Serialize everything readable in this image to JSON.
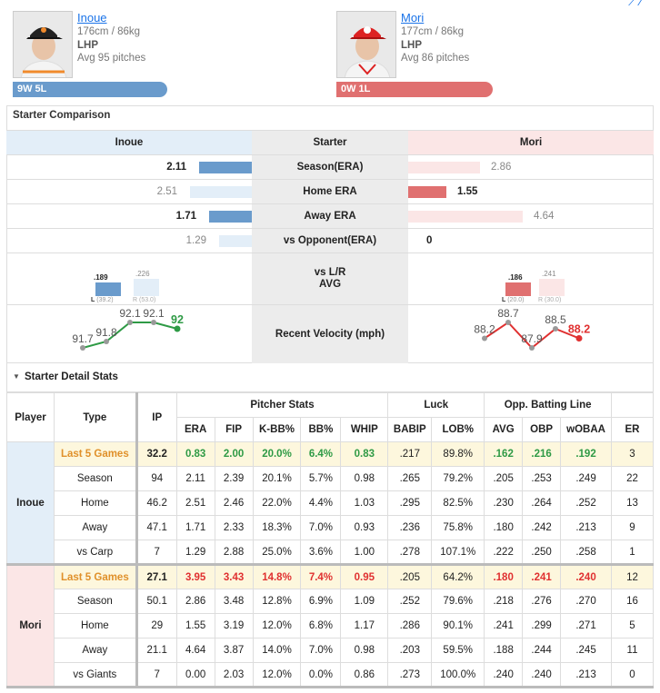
{
  "header": {
    "left": {
      "name": "Inoue",
      "height_weight": "176cm / 86kg",
      "hand": "LHP",
      "avg_pitches": "Avg 95 pitches",
      "record": "9W 5L",
      "color": "#6a9bcc"
    },
    "right": {
      "name": "Mori",
      "height_weight": "177cm / 86kg",
      "hand": "LHP",
      "avg_pitches": "Avg 86 pitches",
      "record": "0W 1L",
      "color": "#e07070"
    }
  },
  "comparison": {
    "title": "Starter Comparison",
    "head": {
      "left": "Inoue",
      "mid": "Starter",
      "right": "Mori"
    },
    "rows": [
      {
        "label": "Season(ERA)",
        "left": "2.11",
        "right": "2.86",
        "left_bold": true,
        "right_bold": false,
        "left_frac": 0.55,
        "right_frac": 0.75
      },
      {
        "label": "Home ERA",
        "left": "2.51",
        "right": "1.55",
        "left_bold": false,
        "right_bold": true,
        "left_frac": 0.65,
        "right_frac": 0.4
      },
      {
        "label": "Away ERA",
        "left": "1.71",
        "right": "4.64",
        "left_bold": true,
        "right_bold": false,
        "left_frac": 0.45,
        "right_frac": 1.2
      },
      {
        "label": "vs Opponent(ERA)",
        "left": "1.29",
        "right": "0",
        "left_bold": false,
        "right_bold": true,
        "left_frac": 0.34,
        "right_frac": 0.0
      }
    ],
    "lr": {
      "label1": "vs L/R",
      "label2": "AVG",
      "left": {
        "l_val": ".189",
        "l_lbl": "L (39.2)",
        "r_val": ".226",
        "r_lbl": "R (53.0)"
      },
      "right": {
        "l_val": ".186",
        "l_lbl": "L (20.0)",
        "r_val": ".241",
        "r_lbl": "R (30.0)"
      }
    },
    "velocity": {
      "label": "Recent Velocity (mph)",
      "left": [
        "91.7",
        "91.8",
        "92.1",
        "92.1",
        "92"
      ],
      "left_values": [
        91.7,
        91.8,
        92.1,
        92.1,
        92.0
      ],
      "right": [
        "88.2",
        "88.7",
        "87.9",
        "88.5",
        "88.2"
      ],
      "right_values": [
        88.2,
        88.7,
        87.9,
        88.5,
        88.2
      ]
    }
  },
  "detail": {
    "title": "Starter Detail Stats",
    "groups": {
      "pitcher": "Pitcher Stats",
      "luck": "Luck",
      "opp": "Opp. Batting Line"
    },
    "cols": [
      "Player",
      "Type",
      "IP",
      "ERA",
      "FIP",
      "K-BB%",
      "BB%",
      "WHIP",
      "BABIP",
      "LOB%",
      "AVG",
      "OBP",
      "wOBAA",
      "ER"
    ],
    "inoue": {
      "name": "Inoue",
      "rows": [
        [
          "Last 5 Games",
          "32.2",
          "0.83",
          "2.00",
          "20.0%",
          "6.4%",
          "0.83",
          ".217",
          "89.8%",
          ".162",
          ".216",
          ".192",
          "3"
        ],
        [
          "Season",
          "94",
          "2.11",
          "2.39",
          "20.1%",
          "5.7%",
          "0.98",
          ".265",
          "79.2%",
          ".205",
          ".253",
          ".249",
          "22"
        ],
        [
          "Home",
          "46.2",
          "2.51",
          "2.46",
          "22.0%",
          "4.4%",
          "1.03",
          ".295",
          "82.5%",
          ".230",
          ".264",
          ".252",
          "13"
        ],
        [
          "Away",
          "47.1",
          "1.71",
          "2.33",
          "18.3%",
          "7.0%",
          "0.93",
          ".236",
          "75.8%",
          ".180",
          ".242",
          ".213",
          "9"
        ],
        [
          "vs Carp",
          "7",
          "1.29",
          "2.88",
          "25.0%",
          "3.6%",
          "1.00",
          ".278",
          "107.1%",
          ".222",
          ".250",
          ".258",
          "1"
        ]
      ]
    },
    "mori": {
      "name": "Mori",
      "rows": [
        [
          "Last 5 Games",
          "27.1",
          "3.95",
          "3.43",
          "14.8%",
          "7.4%",
          "0.95",
          ".205",
          "64.2%",
          ".180",
          ".241",
          ".240",
          "12"
        ],
        [
          "Season",
          "50.1",
          "2.86",
          "3.48",
          "12.8%",
          "6.9%",
          "1.09",
          ".252",
          "79.6%",
          ".218",
          ".276",
          ".270",
          "16"
        ],
        [
          "Home",
          "29",
          "1.55",
          "3.19",
          "12.0%",
          "6.8%",
          "1.17",
          ".286",
          "90.1%",
          ".241",
          ".299",
          ".271",
          "5"
        ],
        [
          "Away",
          "21.1",
          "4.64",
          "3.87",
          "14.0%",
          "7.0%",
          "0.98",
          ".203",
          "59.5%",
          ".188",
          ".244",
          ".245",
          "11"
        ],
        [
          "vs Giants",
          "7",
          "0.00",
          "2.03",
          "12.0%",
          "0.0%",
          "0.86",
          ".273",
          "100.0%",
          ".240",
          ".240",
          ".213",
          "0"
        ]
      ]
    }
  }
}
